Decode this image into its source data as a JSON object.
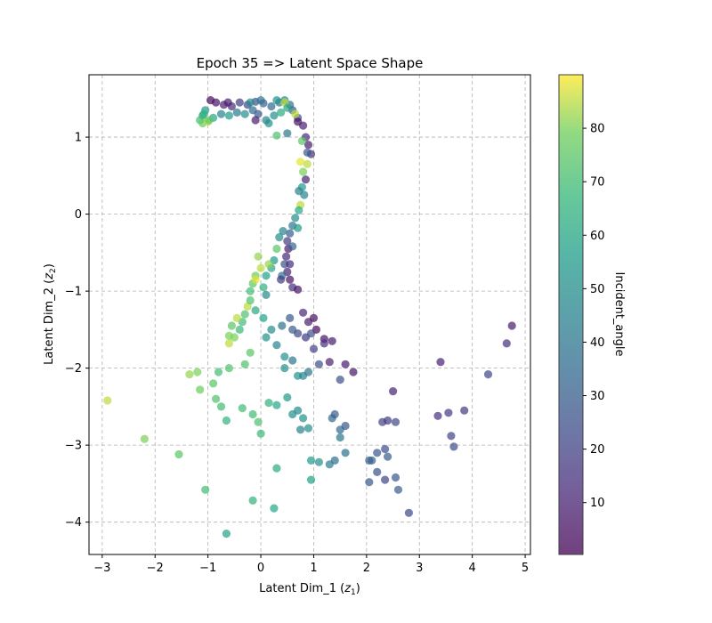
{
  "chart_data": {
    "type": "scatter",
    "title": "Epoch 35 => Latent Space Shape",
    "xlabel": "Latent Dim_1 (z₁)",
    "ylabel": "Latent Dim_2 (z₂)",
    "xlabel_main": "Latent Dim_1 (",
    "xlabel_sym": "z",
    "xlabel_sub": "1",
    "xlabel_close": ")",
    "ylabel_main": "Latent Dim_2 (",
    "ylabel_sym": "z",
    "ylabel_sub": "2",
    "ylabel_close": ")",
    "xlim": [
      -3.25,
      5.1
    ],
    "ylim": [
      -4.42,
      1.81
    ],
    "xticks": [
      -3,
      -2,
      -1,
      0,
      1,
      2,
      3,
      4,
      5
    ],
    "xtick_labels": [
      "−3",
      "−2",
      "−1",
      "0",
      "1",
      "2",
      "3",
      "4",
      "5"
    ],
    "yticks": [
      -4,
      -3,
      -2,
      -1,
      0,
      1
    ],
    "ytick_labels": [
      "−4",
      "−3",
      "−2",
      "−1",
      "0",
      "1"
    ],
    "grid": true,
    "colorbar": {
      "label": "Incident_angle",
      "range": [
        0.3,
        90
      ],
      "ticks": [
        10,
        20,
        30,
        40,
        50,
        60,
        70,
        80
      ],
      "tick_labels": [
        "10",
        "20",
        "30",
        "40",
        "50",
        "60",
        "70",
        "80"
      ],
      "colormap": "viridis"
    },
    "points": [
      [
        -0.95,
        1.48,
        3
      ],
      [
        -0.85,
        1.45,
        6
      ],
      [
        -0.7,
        1.42,
        10
      ],
      [
        -0.55,
        1.4,
        14
      ],
      [
        -0.4,
        1.45,
        18
      ],
      [
        -0.25,
        1.42,
        22
      ],
      [
        -0.1,
        1.46,
        26
      ],
      [
        0.05,
        1.44,
        30
      ],
      [
        0.2,
        1.4,
        34
      ],
      [
        0.35,
        1.45,
        42
      ],
      [
        0.45,
        1.48,
        48
      ],
      [
        0.55,
        1.42,
        38
      ],
      [
        0.6,
        1.35,
        30
      ],
      [
        0.7,
        1.25,
        22
      ],
      [
        0.8,
        1.15,
        10
      ],
      [
        -1.05,
        1.35,
        55
      ],
      [
        -1.1,
        1.28,
        62
      ],
      [
        -1.15,
        1.22,
        70
      ],
      [
        -1.1,
        1.18,
        78
      ],
      [
        -1.0,
        1.2,
        85
      ],
      [
        -0.9,
        1.25,
        60
      ],
      [
        -0.75,
        1.3,
        45
      ],
      [
        -0.6,
        1.28,
        55
      ],
      [
        -0.45,
        1.32,
        40
      ],
      [
        -0.3,
        1.3,
        50
      ],
      [
        -0.15,
        1.35,
        35
      ],
      [
        -0.05,
        1.3,
        28
      ],
      [
        0.1,
        1.22,
        45
      ],
      [
        0.25,
        1.28,
        50
      ],
      [
        0.38,
        1.32,
        62
      ],
      [
        -0.1,
        1.22,
        8
      ],
      [
        0.15,
        1.18,
        52
      ],
      [
        0.3,
        1.02,
        72
      ],
      [
        0.5,
        1.05,
        40
      ],
      [
        0.45,
        1.45,
        85
      ],
      [
        0.85,
        1.0,
        12
      ],
      [
        0.9,
        0.9,
        8
      ],
      [
        0.95,
        0.78,
        15
      ],
      [
        0.88,
        0.65,
        85
      ],
      [
        0.8,
        0.55,
        80
      ],
      [
        0.85,
        0.45,
        10
      ],
      [
        0.78,
        0.35,
        55
      ],
      [
        0.82,
        0.25,
        45
      ],
      [
        0.75,
        0.12,
        85
      ],
      [
        0.72,
        0.05,
        60
      ],
      [
        0.65,
        -0.05,
        50
      ],
      [
        0.6,
        -0.15,
        40
      ],
      [
        0.55,
        -0.25,
        30
      ],
      [
        0.5,
        -0.35,
        18
      ],
      [
        0.52,
        -0.45,
        8
      ],
      [
        0.48,
        -0.55,
        12
      ],
      [
        0.45,
        -0.65,
        25
      ],
      [
        0.5,
        -0.75,
        10
      ],
      [
        0.55,
        -0.85,
        5
      ],
      [
        0.6,
        -0.95,
        15
      ],
      [
        0.35,
        -0.3,
        50
      ],
      [
        0.3,
        -0.45,
        75
      ],
      [
        0.25,
        -0.6,
        55
      ],
      [
        0.2,
        -0.7,
        60
      ],
      [
        0.4,
        -0.8,
        38
      ],
      [
        0.15,
        -0.65,
        82
      ],
      [
        0.0,
        -0.7,
        85
      ],
      [
        -0.1,
        -0.8,
        78
      ],
      [
        -0.15,
        -0.9,
        75
      ],
      [
        -0.2,
        -1.0,
        70
      ],
      [
        -0.1,
        -0.85,
        88
      ],
      [
        0.05,
        -0.95,
        65
      ],
      [
        0.1,
        -1.05,
        48
      ],
      [
        -0.25,
        -1.2,
        85
      ],
      [
        -0.3,
        -1.3,
        72
      ],
      [
        -0.35,
        -1.4,
        70
      ],
      [
        -0.4,
        -1.5,
        68
      ],
      [
        -0.5,
        -1.6,
        80
      ],
      [
        -0.6,
        -1.68,
        85
      ],
      [
        -0.1,
        -1.25,
        60
      ],
      [
        0.05,
        -1.35,
        58
      ],
      [
        0.2,
        -1.5,
        50
      ],
      [
        0.3,
        -1.7,
        45
      ],
      [
        0.45,
        -1.85,
        52
      ],
      [
        0.6,
        -1.5,
        30
      ],
      [
        0.7,
        -1.55,
        22
      ],
      [
        0.85,
        -1.6,
        18
      ],
      [
        0.9,
        -1.4,
        8
      ],
      [
        1.0,
        -1.35,
        5
      ],
      [
        1.05,
        -1.5,
        3
      ],
      [
        1.2,
        -1.62,
        6
      ],
      [
        1.35,
        -1.65,
        8
      ],
      [
        1.0,
        -1.75,
        20
      ],
      [
        1.1,
        -1.95,
        25
      ],
      [
        1.3,
        -1.92,
        10
      ],
      [
        1.5,
        -2.15,
        25
      ],
      [
        1.6,
        -1.95,
        8
      ],
      [
        1.75,
        -2.05,
        6
      ],
      [
        0.45,
        -2.0,
        50
      ],
      [
        0.7,
        -2.1,
        52
      ],
      [
        0.8,
        -2.1,
        45
      ],
      [
        0.9,
        -2.05,
        40
      ],
      [
        -0.6,
        -2.0,
        72
      ],
      [
        -0.8,
        -2.05,
        70
      ],
      [
        -1.2,
        -2.05,
        80
      ],
      [
        -1.35,
        -2.08,
        82
      ],
      [
        -2.9,
        -2.42,
        85
      ],
      [
        -1.15,
        -2.28,
        78
      ],
      [
        -0.85,
        -2.4,
        72
      ],
      [
        -0.75,
        -2.5,
        70
      ],
      [
        -0.65,
        -2.68,
        65
      ],
      [
        -0.35,
        -2.52,
        70
      ],
      [
        -0.15,
        -2.6,
        70
      ],
      [
        0.15,
        -2.45,
        65
      ],
      [
        0.3,
        -2.48,
        60
      ],
      [
        0.5,
        -2.38,
        55
      ],
      [
        0.6,
        -2.6,
        50
      ],
      [
        0.7,
        -2.55,
        48
      ],
      [
        0.8,
        -2.65,
        52
      ],
      [
        0.75,
        -2.8,
        45
      ],
      [
        0.9,
        -2.78,
        50
      ],
      [
        -0.05,
        -2.7,
        72
      ],
      [
        0.0,
        -2.85,
        68
      ],
      [
        1.35,
        -2.65,
        35
      ],
      [
        1.4,
        -2.6,
        30
      ],
      [
        1.5,
        -2.8,
        35
      ],
      [
        1.6,
        -2.75,
        28
      ],
      [
        1.5,
        -2.9,
        40
      ],
      [
        1.6,
        -3.1,
        38
      ],
      [
        1.4,
        -3.2,
        36
      ],
      [
        1.3,
        -3.25,
        42
      ],
      [
        1.1,
        -3.22,
        50
      ],
      [
        0.95,
        -3.2,
        55
      ],
      [
        0.95,
        -3.45,
        58
      ],
      [
        0.3,
        -3.3,
        62
      ],
      [
        2.05,
        -3.2,
        30
      ],
      [
        2.1,
        -3.2,
        32
      ],
      [
        2.2,
        -3.1,
        28
      ],
      [
        2.35,
        -3.05,
        25
      ],
      [
        2.4,
        -3.15,
        30
      ],
      [
        2.2,
        -3.35,
        25
      ],
      [
        2.35,
        -3.45,
        22
      ],
      [
        2.55,
        -3.42,
        28
      ],
      [
        2.6,
        -3.58,
        30
      ],
      [
        2.05,
        -3.48,
        28
      ],
      [
        2.8,
        -3.88,
        22
      ],
      [
        2.3,
        -2.7,
        20
      ],
      [
        2.4,
        -2.68,
        18
      ],
      [
        2.55,
        -2.7,
        22
      ],
      [
        2.5,
        -2.3,
        10
      ],
      [
        3.35,
        -2.62,
        15
      ],
      [
        3.55,
        -2.58,
        18
      ],
      [
        3.6,
        -2.88,
        20
      ],
      [
        3.65,
        -3.02,
        24
      ],
      [
        3.85,
        -2.55,
        18
      ],
      [
        3.4,
        -1.92,
        10
      ],
      [
        4.3,
        -2.08,
        22
      ],
      [
        4.65,
        -1.68,
        15
      ],
      [
        4.75,
        -1.45,
        8
      ],
      [
        -1.05,
        -3.58,
        70
      ],
      [
        -1.55,
        -3.12,
        75
      ],
      [
        -2.2,
        -2.92,
        80
      ],
      [
        -0.15,
        -3.72,
        65
      ],
      [
        0.25,
        -3.82,
        60
      ],
      [
        -0.65,
        -4.15,
        58
      ],
      [
        -0.2,
        1.45,
        48
      ],
      [
        0.0,
        1.48,
        40
      ],
      [
        0.3,
        1.48,
        52
      ],
      [
        0.5,
        1.38,
        60
      ],
      [
        0.65,
        1.3,
        85
      ],
      [
        -1.08,
        1.3,
        65
      ],
      [
        -0.98,
        1.22,
        75
      ],
      [
        -0.62,
        1.45,
        8
      ],
      [
        0.7,
        1.2,
        5
      ],
      [
        0.78,
        0.95,
        75
      ],
      [
        0.88,
        0.8,
        28
      ],
      [
        0.75,
        0.68,
        88
      ],
      [
        0.72,
        0.3,
        45
      ],
      [
        0.7,
        -0.18,
        55
      ],
      [
        0.6,
        -0.42,
        32
      ],
      [
        0.42,
        -0.22,
        45
      ],
      [
        0.55,
        -0.65,
        14
      ],
      [
        0.38,
        -0.85,
        18
      ],
      [
        0.7,
        -0.98,
        6
      ],
      [
        -0.05,
        -0.55,
        82
      ],
      [
        0.1,
        -0.8,
        58
      ],
      [
        -0.2,
        -1.12,
        72
      ],
      [
        -0.45,
        -1.35,
        85
      ],
      [
        -0.55,
        -1.45,
        75
      ],
      [
        0.4,
        -1.45,
        38
      ],
      [
        0.55,
        -1.35,
        28
      ],
      [
        0.8,
        -1.28,
        12
      ],
      [
        1.2,
        -1.68,
        15
      ],
      [
        0.95,
        -1.55,
        25
      ],
      [
        0.1,
        -1.6,
        52
      ],
      [
        -0.3,
        -1.95,
        72
      ],
      [
        0.6,
        -1.9,
        40
      ],
      [
        -0.2,
        -1.8,
        75
      ],
      [
        -0.6,
        -1.58,
        80
      ],
      [
        -0.9,
        -2.2,
        75
      ]
    ]
  }
}
